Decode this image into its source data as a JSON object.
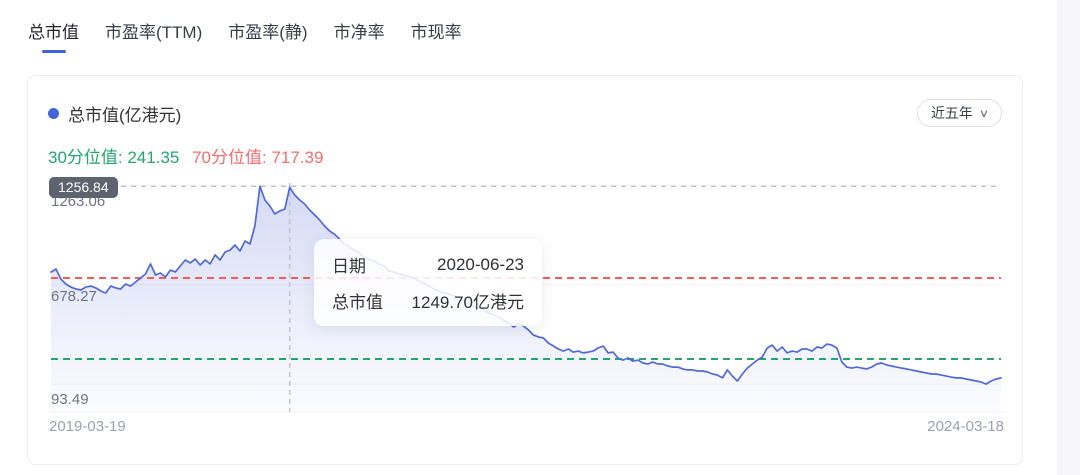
{
  "tabs": [
    {
      "label": "总市值",
      "active": true
    },
    {
      "label": "市盈率(TTM)",
      "active": false
    },
    {
      "label": "市盈率(静)",
      "active": false
    },
    {
      "label": "市净率",
      "active": false
    },
    {
      "label": "市现率",
      "active": false
    }
  ],
  "card": {
    "legend_label": "总市值(亿港元)",
    "range_value": "近五年",
    "p30_text": "30分位值: 241.35",
    "p70_text": "70分位值: 717.39",
    "max_badge": "1256.84",
    "y_axis_labels": [
      "1263.06",
      "678.27",
      "93.49"
    ],
    "x_axis_left": "2019-03-19",
    "x_axis_right": "2024-03-18",
    "tooltip": {
      "date_label": "日期",
      "date_value": "2020-06-23",
      "value_label": "总市值",
      "value_value": "1249.70亿港元"
    }
  },
  "chart_data": {
    "type": "line",
    "title": "总市值(亿港元)",
    "xlabel": "",
    "ylabel": "亿港元",
    "x_start": "2019-03-19",
    "x_end": "2024-03-18",
    "y_gridline_values": [
      1263.06,
      678.27,
      93.49
    ],
    "max_value": 1256.84,
    "percentile_30": 241.35,
    "percentile_70": 717.39,
    "cursor_index": 48,
    "cursor_date": "2020-06-23",
    "cursor_value": 1249.7,
    "legend_position": "top-left",
    "colors": {
      "line": "#5069d8",
      "fill_top": "rgba(103,124,221,0.28)",
      "fill_bottom": "rgba(103,124,221,0.02)",
      "p70_line": "#f25d5d",
      "p30_line": "#27a36e",
      "max_line": "#a8adb6",
      "cursor_line": "#c4c6cc",
      "gridline": "#f1f2f5"
    },
    "values": [
      752,
      770,
      711,
      682,
      664,
      653,
      647,
      664,
      670,
      659,
      641,
      629,
      670,
      659,
      653,
      682,
      670,
      694,
      717,
      741,
      800,
      735,
      747,
      723,
      764,
      753,
      788,
      823,
      806,
      829,
      794,
      823,
      800,
      853,
      823,
      870,
      882,
      911,
      876,
      935,
      917,
      1023,
      1257,
      1176,
      1141,
      1094,
      1111,
      1123,
      1249.7,
      1205,
      1176,
      1152,
      1117,
      1088,
      1058,
      1023,
      994,
      975,
      946,
      917,
      899,
      882,
      864,
      841,
      829,
      817,
      800,
      788,
      758,
      752,
      741,
      735,
      723,
      717,
      700,
      688,
      670,
      653,
      641,
      629,
      623,
      612,
      600,
      576,
      565,
      553,
      541,
      529,
      512,
      500,
      488,
      470,
      453,
      429,
      447,
      435,
      412,
      382,
      371,
      365,
      335,
      318,
      300,
      288,
      300,
      282,
      288,
      277,
      282,
      288,
      306,
      318,
      277,
      282,
      247,
      235,
      247,
      229,
      235,
      218,
      212,
      224,
      212,
      212,
      200,
      194,
      194,
      183,
      177,
      177,
      171,
      171,
      165,
      153,
      147,
      130,
      177,
      141,
      112,
      153,
      188,
      212,
      235,
      253,
      306,
      323,
      288,
      312,
      277,
      288,
      282,
      300,
      300,
      288,
      312,
      306,
      329,
      323,
      306,
      224,
      194,
      188,
      194,
      188,
      183,
      194,
      212,
      218,
      206,
      200,
      194,
      188,
      183,
      177,
      171,
      165,
      159,
      153,
      153,
      147,
      141,
      135,
      130,
      130,
      124,
      118,
      112,
      106,
      94,
      112,
      124,
      130
    ]
  }
}
